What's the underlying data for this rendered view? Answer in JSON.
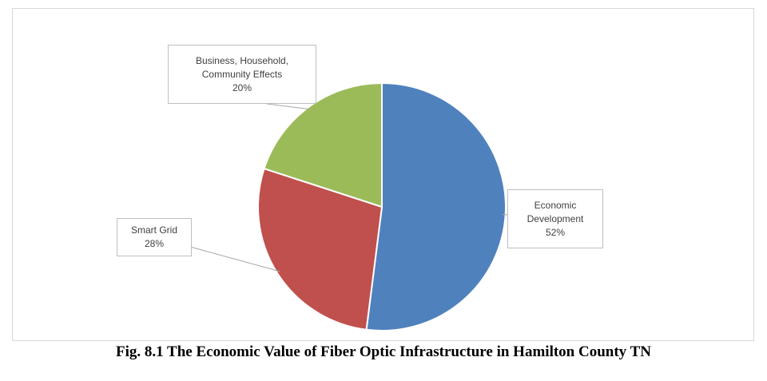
{
  "chart_data": {
    "type": "pie",
    "slices": [
      {
        "label_lines": [
          "Economic",
          "Development"
        ],
        "pct_label": "52%",
        "value": 52,
        "color": "#4f81bd"
      },
      {
        "label_lines": [
          "Smart Grid"
        ],
        "pct_label": "28%",
        "value": 28,
        "color": "#c0504d"
      },
      {
        "label_lines": [
          "Business, Household,",
          "Community Effects"
        ],
        "pct_label": "20%",
        "value": 20,
        "color": "#9bbb59"
      }
    ],
    "start_angle_deg": 0,
    "direction": "clockwise",
    "legend": "none",
    "data_labels": "callouts"
  },
  "caption": "Fig. 8.1 The Economic Value of Fiber Optic Infrastructure in Hamilton County TN"
}
